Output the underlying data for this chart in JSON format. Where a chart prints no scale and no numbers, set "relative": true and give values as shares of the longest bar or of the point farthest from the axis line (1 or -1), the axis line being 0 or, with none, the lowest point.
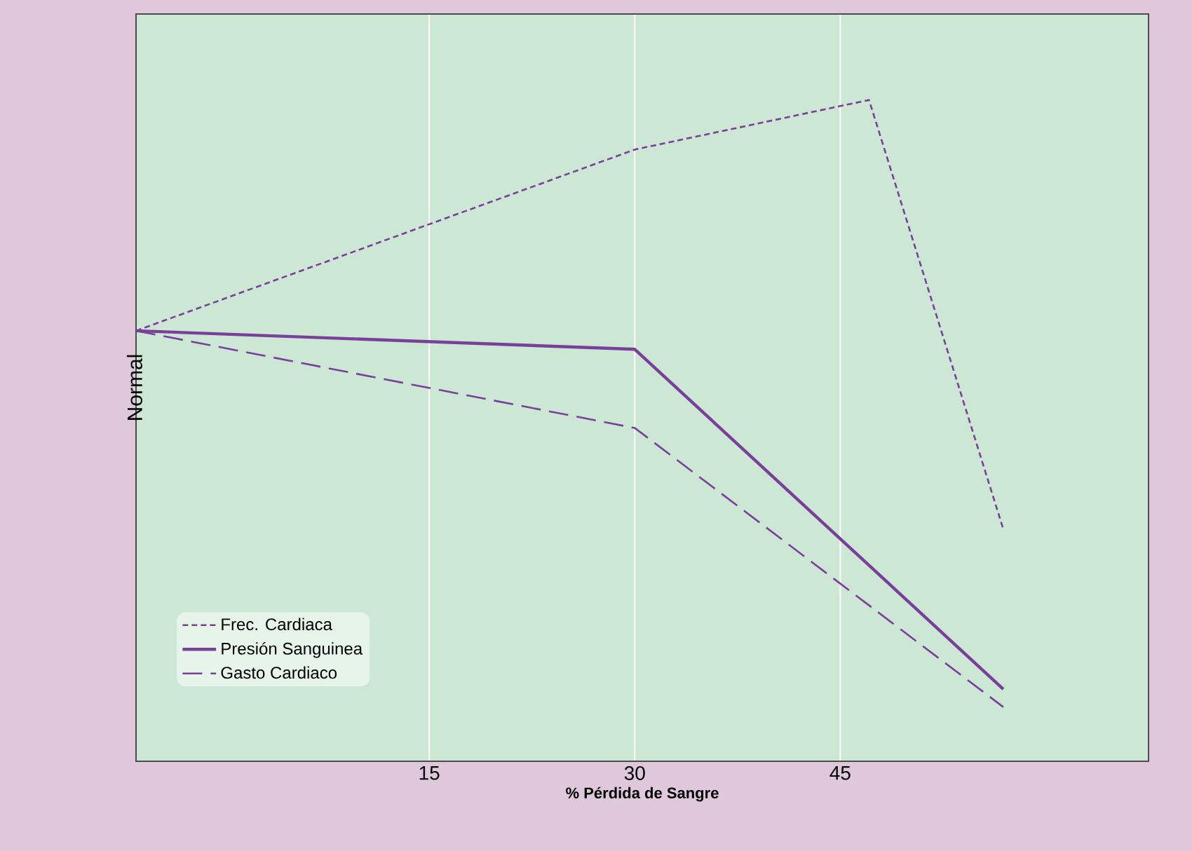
{
  "chart_data": {
    "type": "line",
    "xlabel": "% Pérdida de Sangre",
    "ylabel": "Normal",
    "relative": true,
    "xlim": [
      -6.4,
      67.5
    ],
    "xticks": [
      15,
      30,
      45
    ],
    "grid": "x",
    "legend": "bottom left",
    "series": [
      {
        "name": "Frec. Cardiaca",
        "color": "#7a3f9a",
        "line_style": "dotted",
        "x": [
          -6.4,
          30,
          47.1,
          56.9
        ],
        "values": [
          0.651,
          0.925,
          1,
          0.351
        ]
      },
      {
        "name": "Presión Sanguinea",
        "color": "#7a3f9a",
        "line_style": "solid",
        "x": [
          -6.4,
          30,
          56.9
        ],
        "values": [
          0.651,
          0.623,
          0.109
        ]
      },
      {
        "name": "Gasto Cardiaco",
        "color": "#7a3f9a",
        "line_style": "dashed",
        "x": [
          -6.4,
          30,
          56.9
        ],
        "values": [
          0.651,
          0.504,
          0.082
        ]
      }
    ]
  }
}
